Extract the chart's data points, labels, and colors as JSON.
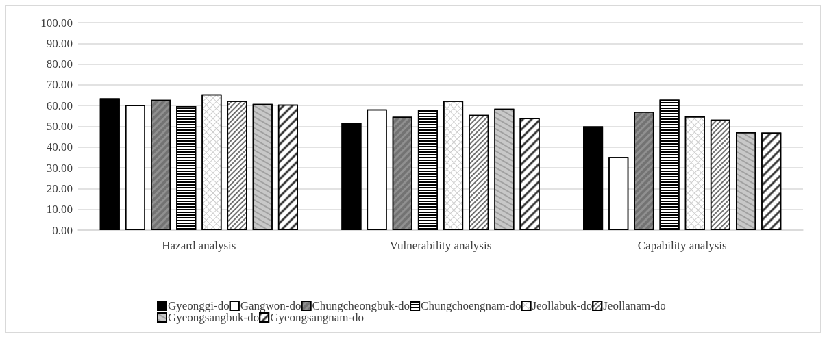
{
  "chart_data": {
    "type": "bar",
    "categories": [
      "Hazard analysis",
      "Vulnerability analysis",
      "Capability analysis"
    ],
    "series": [
      {
        "name": "Gyeonggi-do",
        "color": "#000000",
        "values": [
          63.5,
          51.8,
          50.0
        ]
      },
      {
        "name": "Gangwon-do",
        "color": "#ffffff",
        "values": [
          60.2,
          58.2,
          35.2
        ]
      },
      {
        "name": "Chungcheongbuk-do",
        "color": "#909090",
        "values": [
          62.8,
          54.6,
          57.1
        ]
      },
      {
        "name": "Chungchoengnam-do",
        "color": "#ffffff",
        "values": [
          59.7,
          57.8,
          62.9
        ]
      },
      {
        "name": "Jeollabuk-do",
        "color": "#ffffff",
        "values": [
          65.4,
          62.3,
          54.8
        ]
      },
      {
        "name": "Jeollanam-do",
        "color": "#ffffff",
        "values": [
          62.3,
          55.5,
          53.2
        ]
      },
      {
        "name": "Gyeongsangbuk-do",
        "color": "#c8c8c8",
        "values": [
          60.8,
          58.5,
          47.2
        ]
      },
      {
        "name": "Gyeongsangnam-do",
        "color": "#ffffff",
        "values": [
          60.5,
          54.0,
          47.0
        ]
      }
    ],
    "ylim": [
      0,
      100
    ],
    "yticks": [
      {
        "value": 0,
        "label": "0.00"
      },
      {
        "value": 10,
        "label": "10.00"
      },
      {
        "value": 20,
        "label": "20.00"
      },
      {
        "value": 30,
        "label": "30.00"
      },
      {
        "value": 40,
        "label": "40.00"
      },
      {
        "value": 50,
        "label": "50.00"
      },
      {
        "value": 60,
        "label": "60.00"
      },
      {
        "value": 70,
        "label": "70.00"
      },
      {
        "value": 80,
        "label": "80.00"
      },
      {
        "value": 90,
        "label": "90.00"
      },
      {
        "value": 100,
        "label": "100.00"
      }
    ],
    "grid": "y",
    "legend": "bottom"
  }
}
